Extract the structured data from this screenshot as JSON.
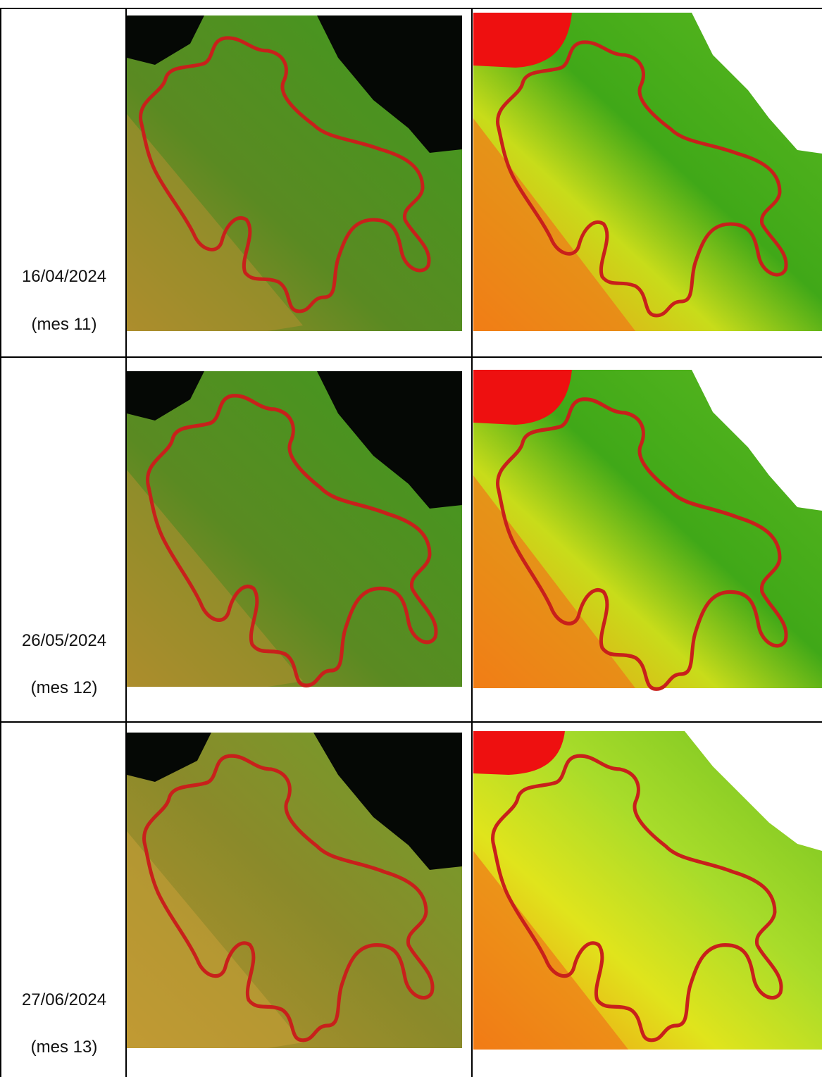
{
  "table": {
    "rows": [
      {
        "date": "16/04/2024",
        "label": "(mes 11)"
      },
      {
        "date": "26/05/2024",
        "label": "(mes 12)"
      },
      {
        "date": "27/06/2024",
        "label": "(mes 13)"
      }
    ]
  }
}
